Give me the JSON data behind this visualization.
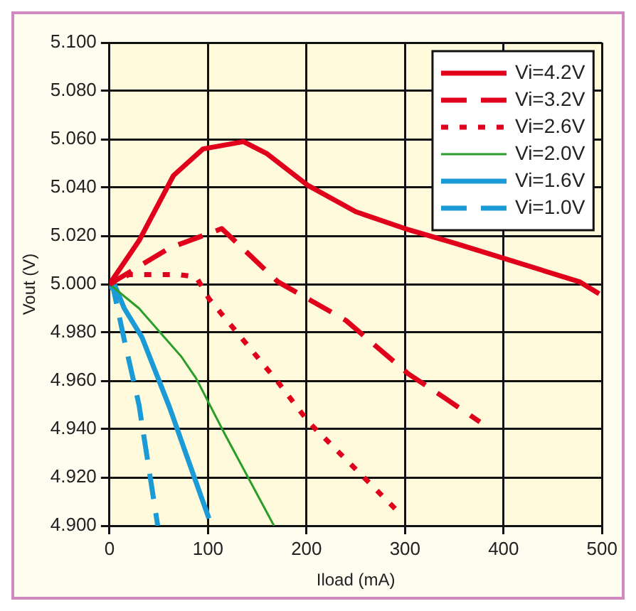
{
  "chart_data": {
    "type": "line",
    "xlabel": "Iload (mA)",
    "ylabel": "Vout (V)",
    "xlim": [
      0,
      500
    ],
    "xticks": [
      0,
      100,
      200,
      300,
      400,
      500
    ],
    "ylim": [
      4.9,
      5.1
    ],
    "yticks": [
      {
        "value": 4.9,
        "label": "4.900"
      },
      {
        "value": 4.92,
        "label": "4.920"
      },
      {
        "value": 4.94,
        "label": "4.940"
      },
      {
        "value": 4.96,
        "label": "4.960"
      },
      {
        "value": 4.98,
        "label": "4.980"
      },
      {
        "value": 5.0,
        "label": "5.000"
      },
      {
        "value": 5.02,
        "label": "5.020"
      },
      {
        "value": 5.04,
        "label": "5.040"
      },
      {
        "value": 5.06,
        "label": "5.060"
      },
      {
        "value": 5.08,
        "label": "5.080"
      },
      {
        "value": 5.1,
        "label": "5.100"
      }
    ],
    "grid": true,
    "legend": "top right",
    "marker": "none",
    "series": [
      {
        "name": "Vi=4.2V",
        "color": "#e0001b",
        "line_style": "solid",
        "x": [
          0,
          30,
          65,
          95,
          136,
          160,
          201,
          250,
          300,
          350,
          398,
          477,
          497
        ],
        "values": [
          5.0,
          5.018,
          5.045,
          5.056,
          5.059,
          5.054,
          5.041,
          5.03,
          5.023,
          5.017,
          5.011,
          5.001,
          4.996
        ]
      },
      {
        "name": "Vi=3.2V",
        "color": "#e0001b",
        "line_style": "dashed",
        "x": [
          0,
          61,
          114,
          171,
          240,
          303,
          340,
          376
        ],
        "values": [
          5.0,
          5.015,
          5.023,
          5.001,
          4.985,
          4.963,
          4.953,
          4.943
        ]
      },
      {
        "name": "Vi=2.6V",
        "color": "#e0001b",
        "line_style": "dotted",
        "x": [
          0,
          20,
          70,
          88,
          101,
          170,
          202,
          295
        ],
        "values": [
          5.0,
          5.004,
          5.004,
          5.003,
          4.994,
          4.96,
          4.943,
          4.905
        ]
      },
      {
        "name": "Vi=2.0V",
        "color": "#2a9d2a",
        "line_style": "solid",
        "x": [
          0,
          30,
          73,
          88,
          117,
          167
        ],
        "values": [
          5.0,
          4.99,
          4.97,
          4.961,
          4.938,
          4.9
        ]
      },
      {
        "name": "Vi=1.6V",
        "color": "#1a9ad6",
        "line_style": "solid",
        "x": [
          0,
          5,
          15,
          33,
          61,
          94,
          101
        ],
        "values": [
          4.998,
          5.0,
          4.99,
          4.978,
          4.949,
          4.911,
          4.903
        ]
      },
      {
        "name": "Vi=1.0V",
        "color": "#1a9ad6",
        "line_style": "dashed",
        "x": [
          0,
          3,
          15,
          30,
          49
        ],
        "values": [
          4.998,
          5.0,
          4.977,
          4.95,
          4.9
        ]
      }
    ]
  }
}
